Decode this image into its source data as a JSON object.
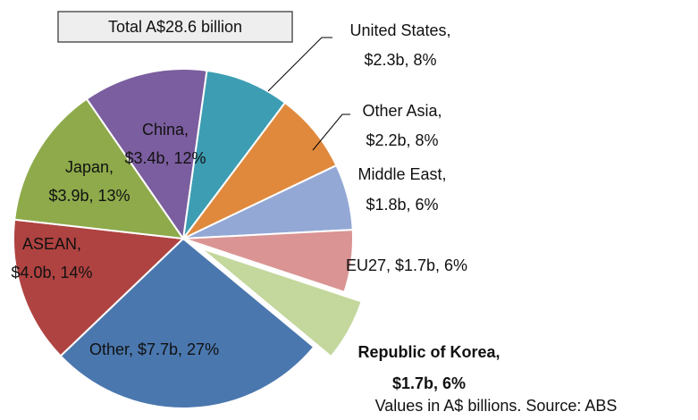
{
  "chart_data": {
    "type": "pie",
    "title": "Total A$28.6 billion",
    "note": "Values in A$ billions. Source: ABS",
    "categories": [
      "United States,",
      "Other Asia,",
      "Middle East,",
      "EU27,",
      "Republic of Korea,",
      "Other,",
      "ASEAN,",
      "Japan,",
      "China,"
    ],
    "values": [
      2.3,
      2.2,
      1.8,
      1.7,
      1.7,
      7.7,
      4.0,
      3.9,
      3.4
    ],
    "value_labels": [
      "$2.3b, 8%",
      "$2.2b, 8%",
      "$1.8b, 6%",
      "$1.7b, 6%",
      "$1.7b, 6%",
      "$7.7b, 27%",
      "$4.0b, 14%",
      "$3.9b, 13%",
      "$3.4b, 12%"
    ],
    "colors": [
      "#3d9db3",
      "#e0893d",
      "#94a8d5",
      "#d99493",
      "#c4d79c",
      "#4a77ae",
      "#af4341",
      "#8eaa4b",
      "#7b5e9f"
    ]
  }
}
